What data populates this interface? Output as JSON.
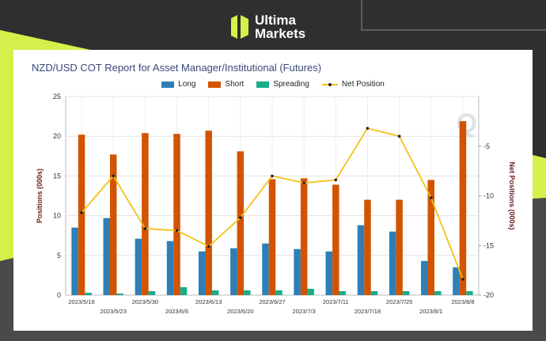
{
  "brand": {
    "line1": "Ultima",
    "line2": "Markets",
    "logo_icon": "ultima-logo-icon"
  },
  "colors": {
    "long": "#2e7fb8",
    "short": "#d35400",
    "spreading": "#1aab8a",
    "net": "#f2c218",
    "accent": "#d4f04a"
  },
  "chart_data": {
    "type": "bar",
    "title": "NZD/USD COT Report for Asset Manager/Institutional (Futures)",
    "legend_position": "top",
    "grid": true,
    "categories": [
      "2023/5/16",
      "2023/5/23",
      "2023/5/30",
      "2023/6/6",
      "2023/6/13",
      "2023/6/20",
      "2023/6/27",
      "2023/7/3",
      "2023/7/11",
      "2023/7/18",
      "2023/7/25",
      "2023/8/1",
      "2023/8/8"
    ],
    "series": [
      {
        "name": "Long",
        "values": [
          8.5,
          9.7,
          7.1,
          6.8,
          5.5,
          5.9,
          6.5,
          5.8,
          5.5,
          8.8,
          8.0,
          4.3,
          3.5
        ]
      },
      {
        "name": "Short",
        "values": [
          20.2,
          17.7,
          20.4,
          20.3,
          20.7,
          18.1,
          14.6,
          14.7,
          13.9,
          12.0,
          12.0,
          14.5,
          21.9
        ]
      },
      {
        "name": "Spreading",
        "values": [
          0.3,
          0.2,
          0.5,
          1.0,
          0.6,
          0.6,
          0.6,
          0.8,
          0.5,
          0.5,
          0.5,
          0.5,
          0.5
        ]
      },
      {
        "name": "Net Position",
        "axis": "right",
        "values": [
          -11.7,
          -8.0,
          -13.3,
          -13.5,
          -15.1,
          -12.2,
          -8.0,
          -8.7,
          -8.4,
          -3.2,
          -4.0,
          -10.2,
          -18.4
        ]
      }
    ],
    "ylabel": "Positions (000s)",
    "y2label": "Net Positions (000s)",
    "ylim": [
      0,
      25
    ],
    "yticks": [
      0,
      5,
      10,
      15,
      20,
      25
    ],
    "y2lim": [
      -20,
      0
    ],
    "y2ticks": [
      -20,
      -15,
      -10,
      -5
    ]
  }
}
